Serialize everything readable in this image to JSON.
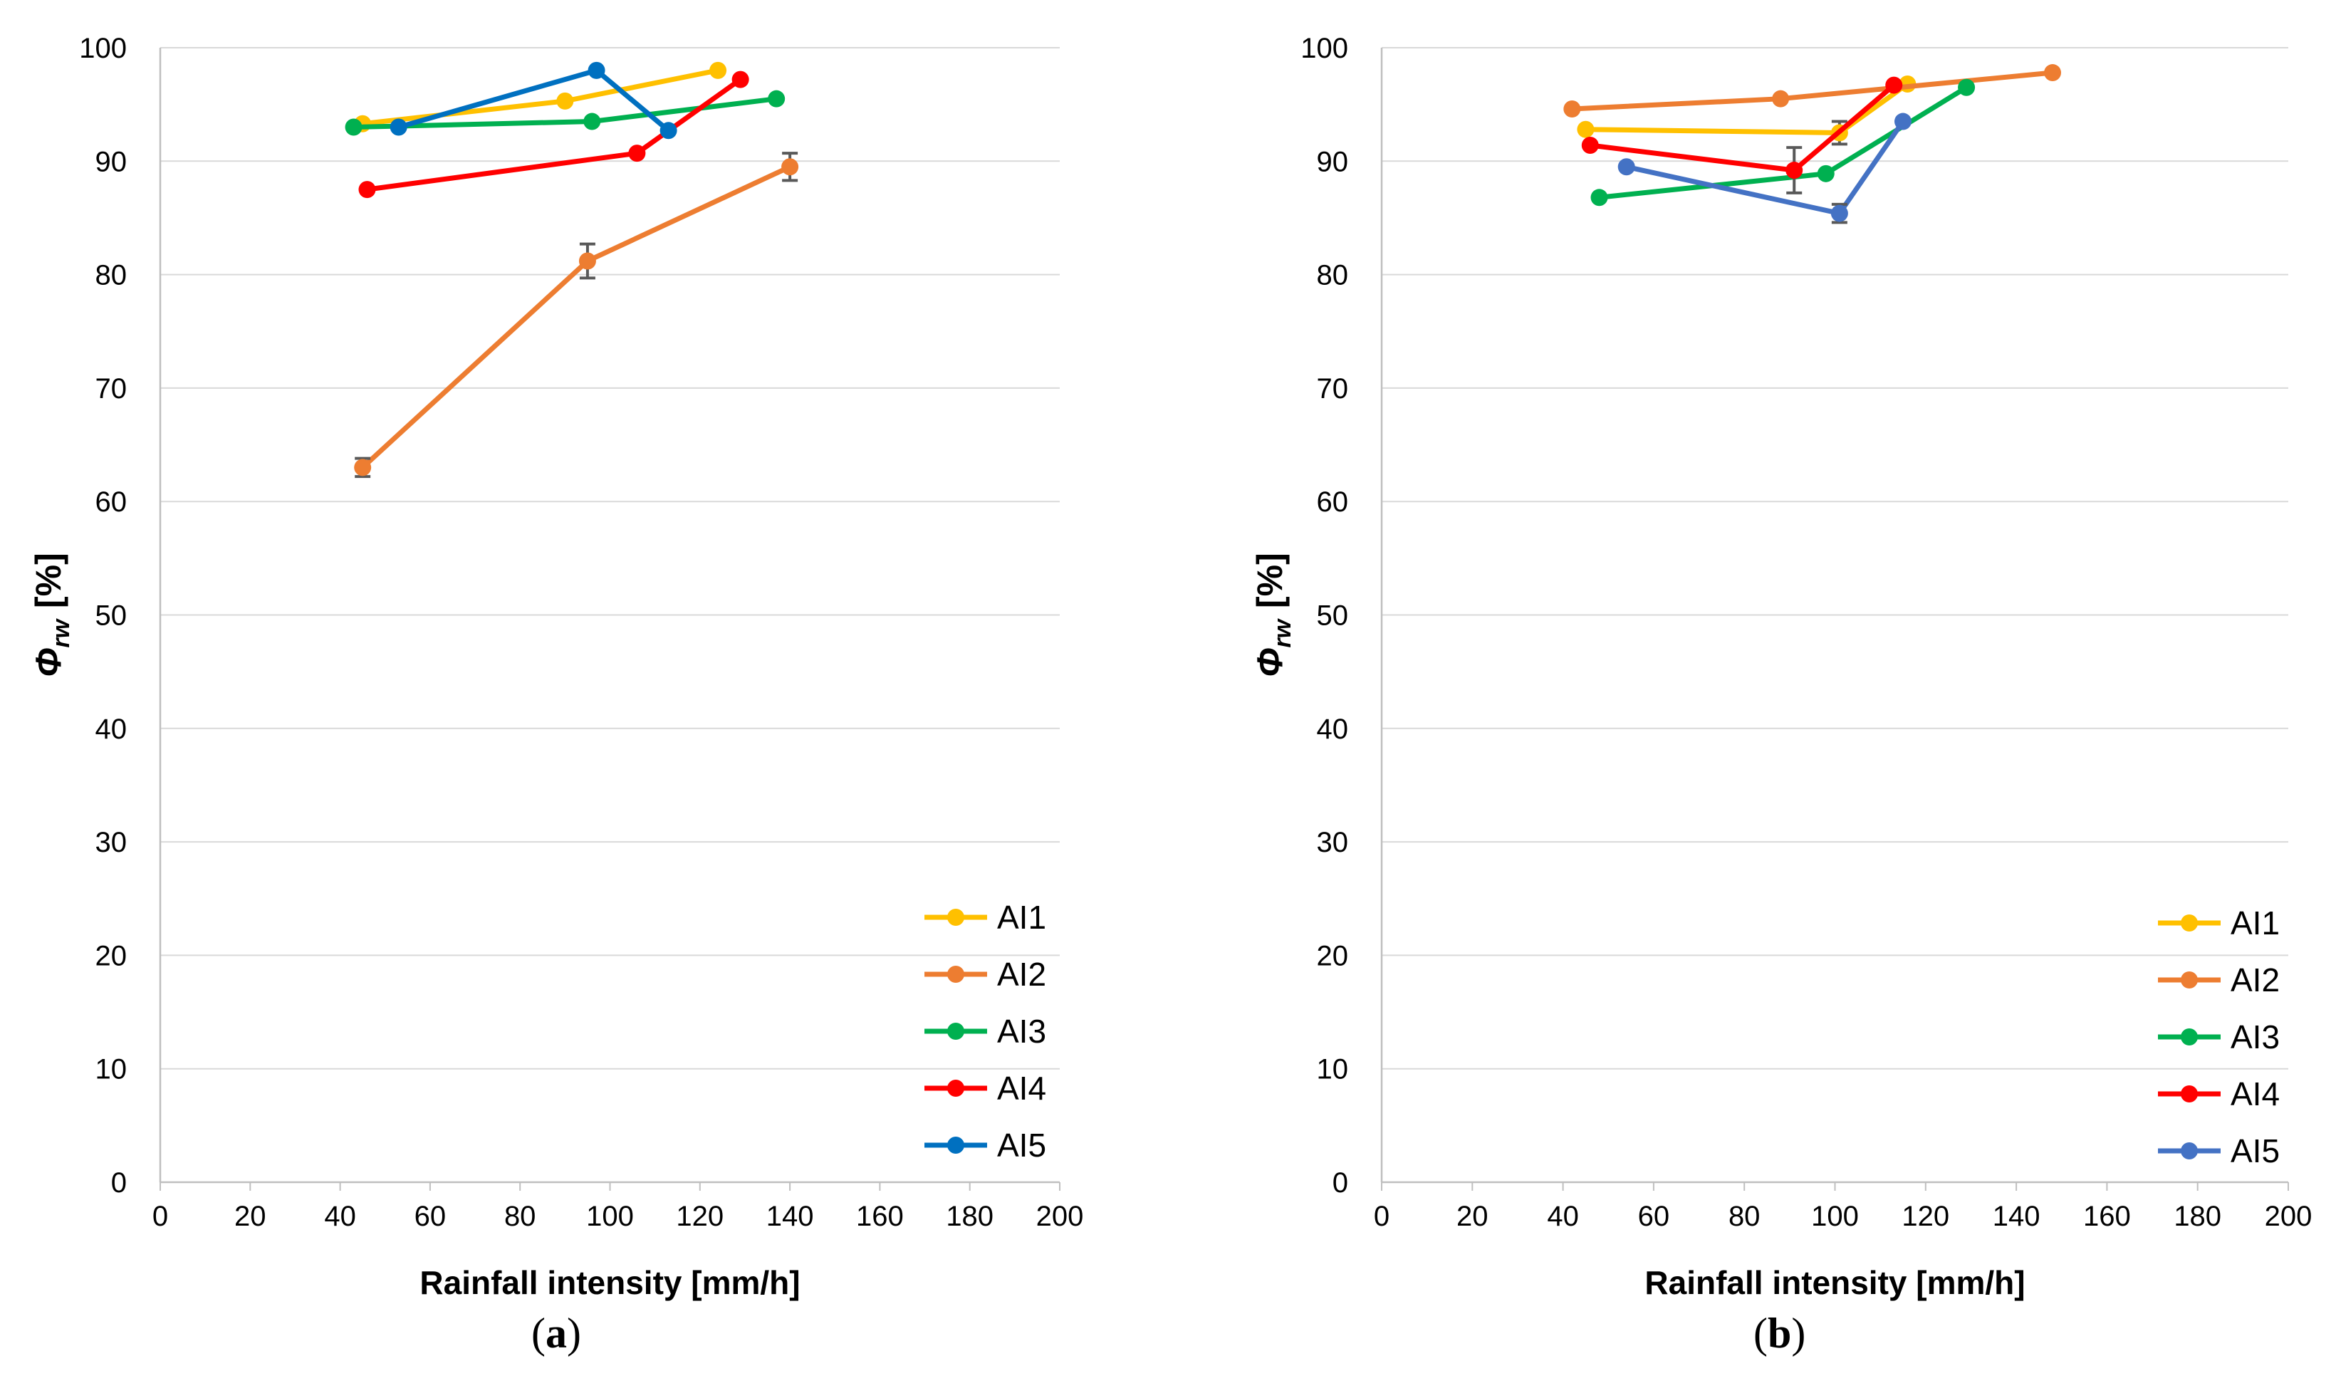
{
  "chart_data": [
    {
      "type": "line",
      "panel_label": "a",
      "xlabel": "Rainfall intensity [mm/h]",
      "ylabel_symbol": "Φ",
      "ylabel_subscript": "rw",
      "ylabel_unit": "[%]",
      "xlim": [
        0,
        200
      ],
      "ylim": [
        0,
        100
      ],
      "x_ticks": [
        "0",
        "20",
        "40",
        "60",
        "80",
        "100",
        "120",
        "140",
        "160",
        "180",
        "200"
      ],
      "y_ticks": [
        "0",
        "10",
        "20",
        "30",
        "40",
        "50",
        "60",
        "70",
        "80",
        "90",
        "100"
      ],
      "grid": true,
      "legend_position": "bottom-right",
      "series": [
        {
          "name": "AI1",
          "color": "#FFC000",
          "points": [
            [
              45,
              93.3
            ],
            [
              90,
              95.3
            ],
            [
              124,
              98.0
            ]
          ]
        },
        {
          "name": "AI2",
          "color": "#ED7D31",
          "points": [
            [
              45,
              63.0
            ],
            [
              95,
              81.2
            ],
            [
              140,
              89.5
            ]
          ],
          "error": [
            0.8,
            1.5,
            1.2
          ]
        },
        {
          "name": "AI3",
          "color": "#00B050",
          "points": [
            [
              43,
              93.0
            ],
            [
              96,
              93.5
            ],
            [
              137,
              95.5
            ]
          ]
        },
        {
          "name": "AI4",
          "color": "#FF0000",
          "points": [
            [
              46,
              87.5
            ],
            [
              106,
              90.7
            ],
            [
              129,
              97.2
            ]
          ]
        },
        {
          "name": "AI5",
          "color": "#0070C0",
          "points": [
            [
              53,
              93.0
            ],
            [
              97,
              98.0
            ],
            [
              113,
              92.7
            ]
          ]
        }
      ]
    },
    {
      "type": "line",
      "panel_label": "b",
      "xlabel": "Rainfall intensity [mm/h]",
      "ylabel_symbol": "Φ",
      "ylabel_subscript": "rw",
      "ylabel_unit": "[%]",
      "xlim": [
        0,
        200
      ],
      "ylim": [
        0,
        100
      ],
      "x_ticks": [
        "0",
        "20",
        "40",
        "60",
        "80",
        "100",
        "120",
        "140",
        "160",
        "180",
        "200"
      ],
      "y_ticks": [
        "0",
        "10",
        "20",
        "30",
        "40",
        "50",
        "60",
        "70",
        "80",
        "90",
        "100"
      ],
      "grid": true,
      "legend_position": "bottom-right",
      "series": [
        {
          "name": "AI1",
          "color": "#FFC000",
          "points": [
            [
              45,
              92.8
            ],
            [
              101,
              92.5
            ],
            [
              116,
              96.8
            ]
          ],
          "error": [
            0,
            1.0,
            0
          ]
        },
        {
          "name": "AI2",
          "color": "#ED7D31",
          "points": [
            [
              42,
              94.6
            ],
            [
              88,
              95.5
            ],
            [
              148,
              97.8
            ]
          ]
        },
        {
          "name": "AI3",
          "color": "#00B050",
          "points": [
            [
              48,
              86.8
            ],
            [
              98,
              88.9
            ],
            [
              129,
              96.5
            ]
          ]
        },
        {
          "name": "AI4",
          "color": "#FF0000",
          "points": [
            [
              46,
              91.4
            ],
            [
              91,
              89.2
            ],
            [
              113,
              96.7
            ]
          ],
          "error": [
            0,
            2.0,
            0
          ]
        },
        {
          "name": "AI5",
          "color": "#4472C4",
          "points": [
            [
              54,
              89.5
            ],
            [
              101,
              85.4
            ],
            [
              115,
              93.5
            ]
          ],
          "error": [
            0,
            0.8,
            0
          ]
        }
      ]
    }
  ]
}
